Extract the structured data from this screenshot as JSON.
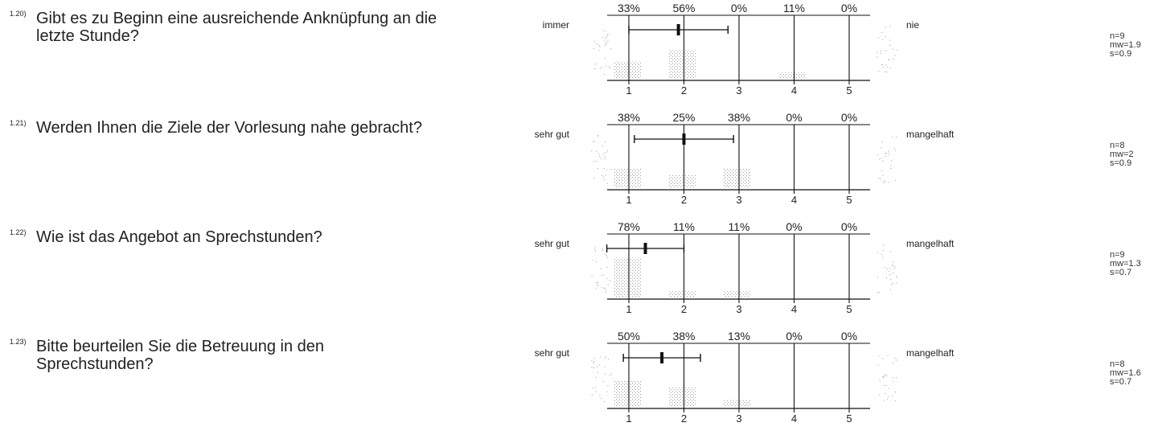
{
  "chart_data": [
    {
      "type": "bar",
      "id": "1.20)",
      "question": "Gibt es zu Beginn eine ausreichende Anknüpfung an die letzte Stunde?",
      "left_anchor": "immer",
      "right_anchor": "nie",
      "categories": [
        "1",
        "2",
        "3",
        "4",
        "5"
      ],
      "percent_labels": [
        "33%",
        "56%",
        "0%",
        "11%",
        "0%"
      ],
      "values": [
        33,
        56,
        0,
        11,
        0
      ],
      "mean": 1.9,
      "sd": 0.9,
      "stats": [
        "n=9",
        "mw=1.9",
        "s=0.9"
      ]
    },
    {
      "type": "bar",
      "id": "1.21)",
      "question": "Werden Ihnen die Ziele der Vorlesung nahe gebracht?",
      "left_anchor": "sehr gut",
      "right_anchor": "mangelhaft",
      "categories": [
        "1",
        "2",
        "3",
        "4",
        "5"
      ],
      "percent_labels": [
        "38%",
        "25%",
        "38%",
        "0%",
        "0%"
      ],
      "values": [
        38,
        25,
        38,
        0,
        0
      ],
      "mean": 2.0,
      "sd": 0.9,
      "stats": [
        "n=8",
        "mw=2",
        "s=0.9"
      ]
    },
    {
      "type": "bar",
      "id": "1.22)",
      "question": "Wie ist das Angebot an Sprechstunden?",
      "left_anchor": "sehr gut",
      "right_anchor": "mangelhaft",
      "categories": [
        "1",
        "2",
        "3",
        "4",
        "5"
      ],
      "percent_labels": [
        "78%",
        "11%",
        "11%",
        "0%",
        "0%"
      ],
      "values": [
        78,
        11,
        11,
        0,
        0
      ],
      "mean": 1.3,
      "sd": 0.7,
      "stats": [
        "n=9",
        "mw=1.3",
        "s=0.7"
      ]
    },
    {
      "type": "bar",
      "id": "1.23)",
      "question": "Bitte beurteilen Sie die Betreuung in den Sprechstunden?",
      "left_anchor": "sehr gut",
      "right_anchor": "mangelhaft",
      "categories": [
        "1",
        "2",
        "3",
        "4",
        "5"
      ],
      "percent_labels": [
        "50%",
        "38%",
        "13%",
        "0%",
        "0%"
      ],
      "values": [
        50,
        38,
        13,
        0,
        0
      ],
      "mean": 1.6,
      "sd": 0.7,
      "stats": [
        "n=8",
        "mw=1.6",
        "s=0.7"
      ]
    }
  ],
  "colors": {
    "axis": "#111111",
    "stipple": "#9a9a9a"
  }
}
